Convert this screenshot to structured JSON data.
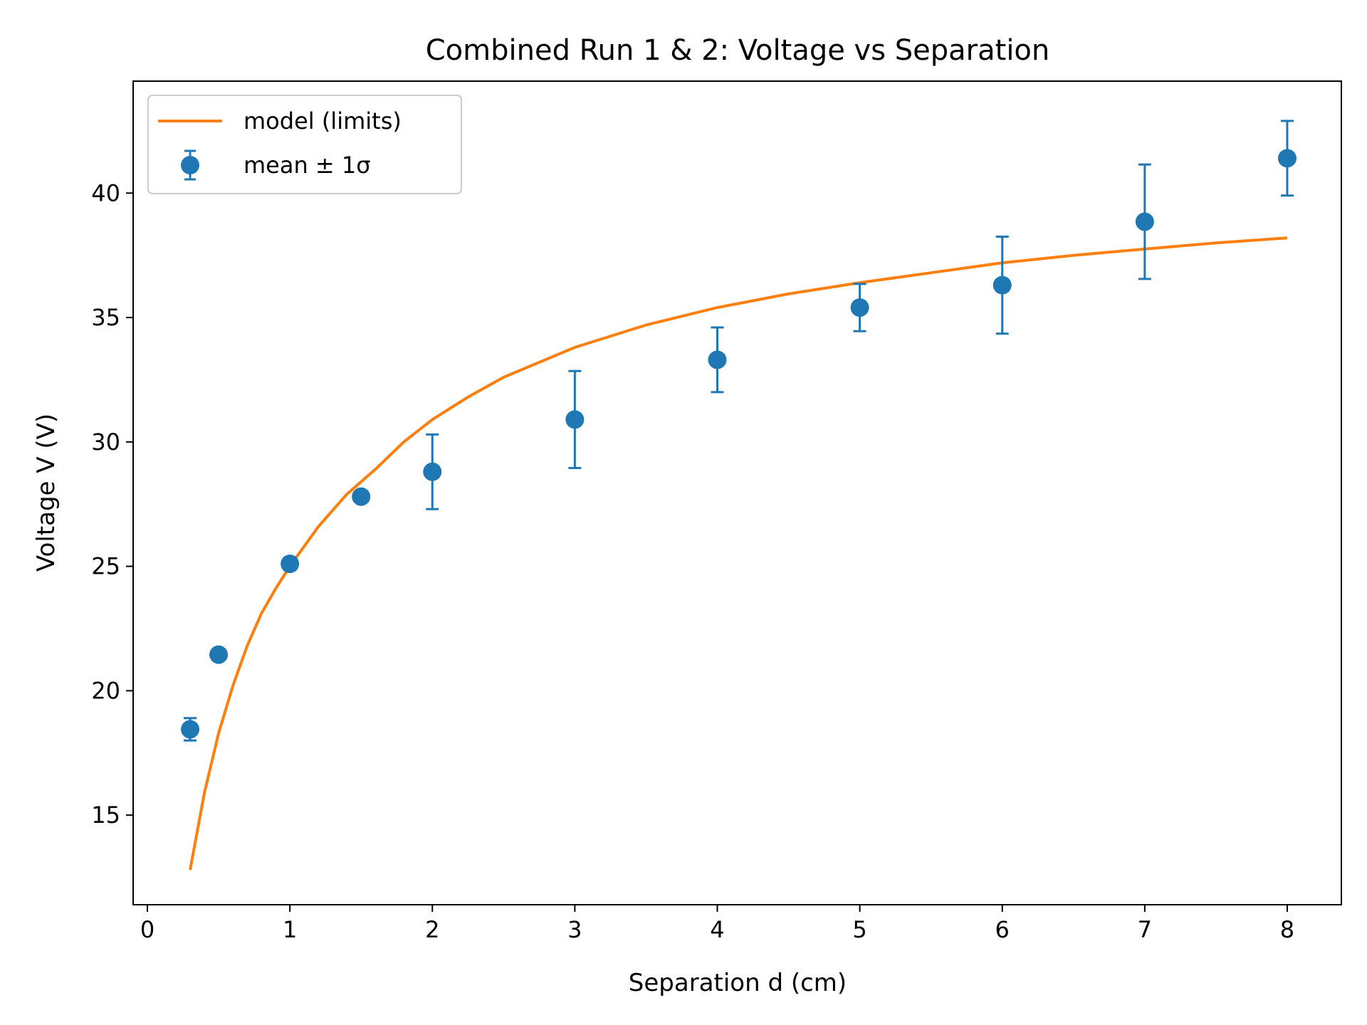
{
  "chart_data": {
    "type": "scatter",
    "title": "Combined Run 1 & 2: Voltage vs Separation",
    "xlabel": "Separation d (cm)",
    "ylabel": "Voltage V (V)",
    "xlim": [
      -0.1,
      8.38
    ],
    "ylim": [
      11.4,
      44.5
    ],
    "x_ticks": [
      0,
      1,
      2,
      3,
      4,
      5,
      6,
      7,
      8
    ],
    "y_ticks": [
      15,
      20,
      25,
      30,
      35,
      40
    ],
    "grid": false,
    "legend_position": "top-left",
    "series": [
      {
        "name": "mean ± 1σ",
        "kind": "errorbar",
        "color": "#1f77b4",
        "x": [
          0.3,
          0.5,
          1,
          1.5,
          2,
          3,
          4,
          5,
          6,
          7,
          8
        ],
        "y": [
          18.45,
          21.45,
          25.1,
          27.8,
          28.8,
          30.9,
          33.3,
          35.4,
          36.3,
          38.85,
          41.4
        ],
        "yerr": [
          0.45,
          0.0,
          0.25,
          0.0,
          1.5,
          1.95,
          1.3,
          0.95,
          1.95,
          2.3,
          1.5
        ]
      },
      {
        "name": "model (limits)",
        "kind": "line",
        "color": "#ff7f0e",
        "x": [
          0.3,
          0.4,
          0.5,
          0.6,
          0.7,
          0.8,
          0.9,
          1.0,
          1.2,
          1.4,
          1.6,
          1.8,
          2.0,
          2.25,
          2.5,
          2.75,
          3.0,
          3.5,
          4.0,
          4.5,
          5.0,
          5.5,
          6.0,
          6.5,
          7.0,
          7.5,
          8.0
        ],
        "y": [
          12.8,
          15.9,
          18.3,
          20.2,
          21.8,
          23.1,
          24.1,
          25.0,
          26.6,
          27.9,
          28.9,
          30.0,
          30.9,
          31.8,
          32.6,
          33.2,
          33.8,
          34.7,
          35.4,
          35.95,
          36.4,
          36.8,
          37.2,
          37.5,
          37.75,
          38.0,
          38.2
        ]
      }
    ]
  }
}
